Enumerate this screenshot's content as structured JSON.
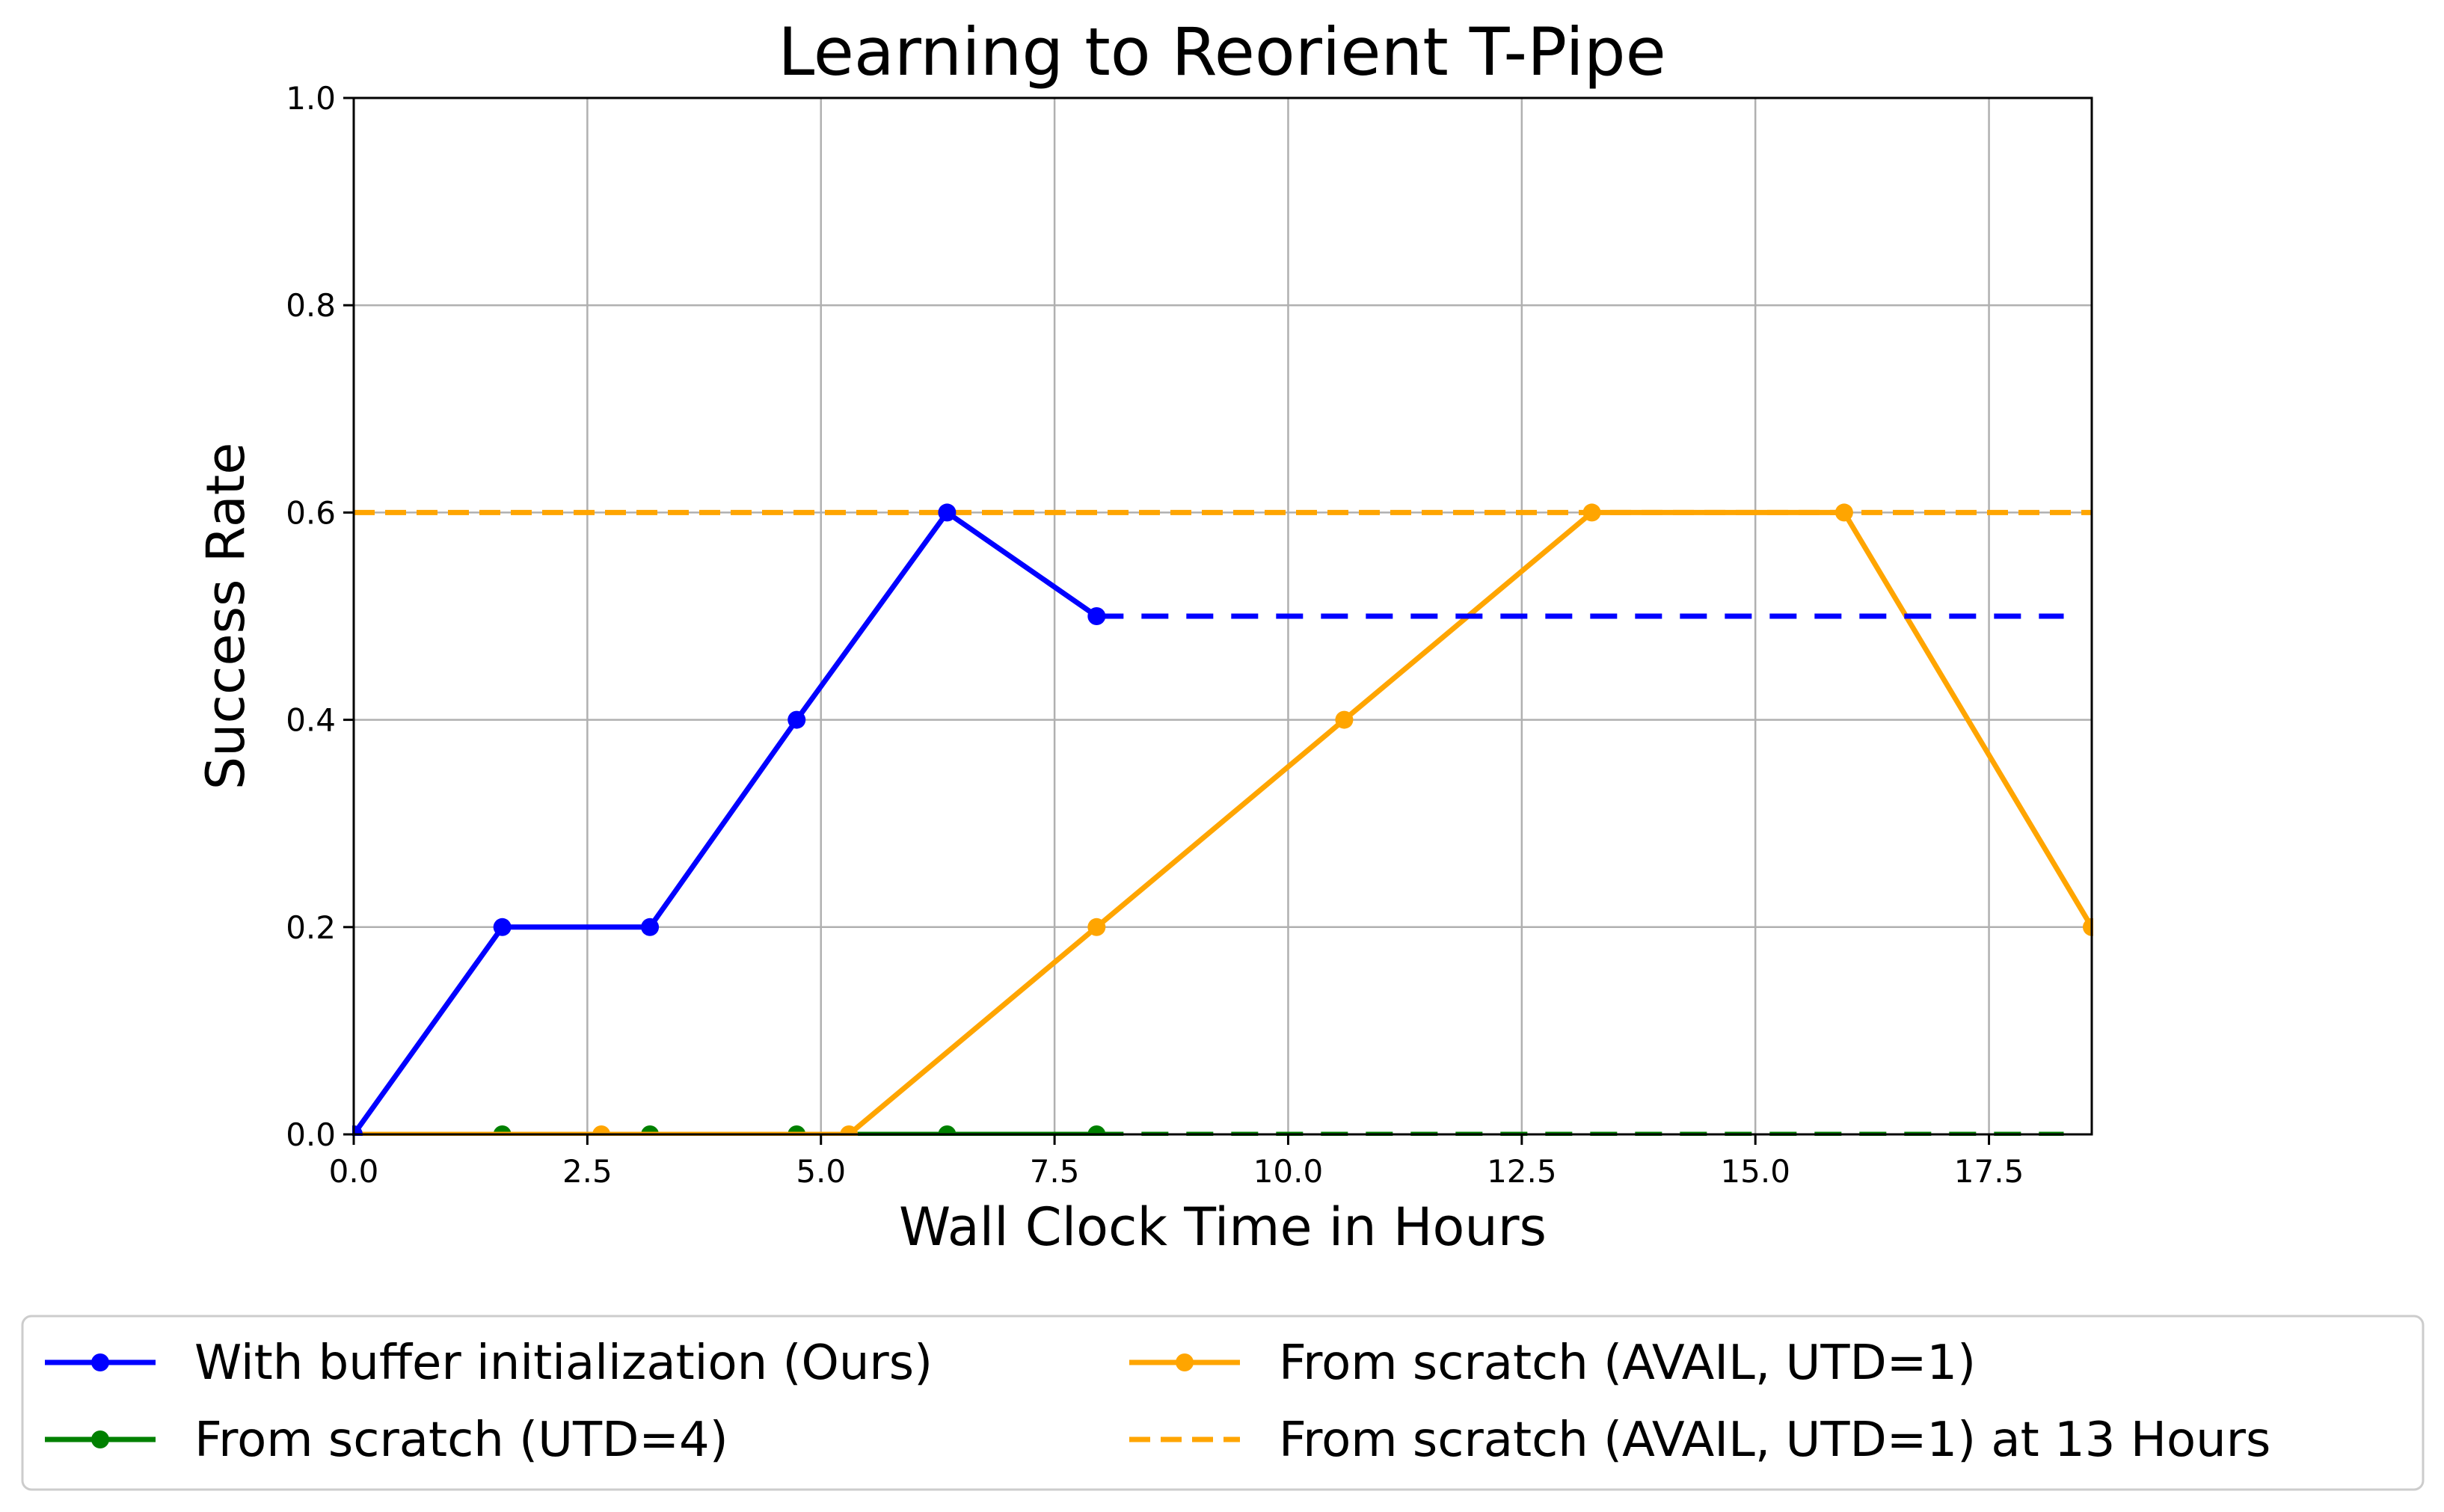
{
  "chart_data": {
    "type": "line",
    "title": "Learning to Reorient T-Pipe",
    "xlabel": "Wall Clock Time in Hours",
    "ylabel": "Success Rate",
    "xlim": [
      0,
      18.6
    ],
    "ylim": [
      0,
      1.0
    ],
    "x_ticks": [
      "0.0",
      "2.5",
      "5.0",
      "7.5",
      "10.0",
      "12.5",
      "15.0",
      "17.5"
    ],
    "y_ticks": [
      "0.0",
      "0.2",
      "0.4",
      "0.6",
      "0.8",
      "1.0"
    ],
    "grid": true,
    "legend_position": "below",
    "series": [
      {
        "name": "With buffer initialization (Ours)",
        "color": "#0000ff",
        "style": "solid",
        "marker": true,
        "x": [
          0.0,
          1.59,
          3.17,
          4.74,
          6.35,
          7.95
        ],
        "y": [
          0.0,
          0.2,
          0.2,
          0.4,
          0.6,
          0.5
        ],
        "extension": {
          "x": [
            7.95,
            18.3
          ],
          "y": [
            0.5,
            0.5
          ],
          "style": "dashed"
        }
      },
      {
        "name": "From scratch (UTD=4)",
        "color": "#008000",
        "style": "solid",
        "marker": true,
        "x": [
          0.0,
          1.59,
          3.17,
          4.74,
          6.35,
          7.95
        ],
        "y": [
          0.0,
          0.0,
          0.0,
          0.0,
          0.0,
          0.0
        ],
        "extension": {
          "x": [
            7.95,
            18.3
          ],
          "y": [
            0.0,
            0.0
          ],
          "style": "dashed"
        }
      },
      {
        "name": "From scratch (AVAIL, UTD=1)",
        "color": "#ffa500",
        "style": "solid",
        "marker": true,
        "x": [
          0.0,
          2.65,
          5.3,
          7.95,
          10.6,
          13.25,
          15.95,
          18.6
        ],
        "y": [
          0.0,
          0.0,
          0.0,
          0.2,
          0.4,
          0.6,
          0.6,
          0.2
        ]
      },
      {
        "name": "From scratch (AVAIL, UTD=1) at 13 Hours",
        "color": "#ffa500",
        "style": "dashed",
        "marker": false,
        "x": [
          0.0,
          18.6
        ],
        "y": [
          0.6,
          0.6
        ]
      }
    ]
  }
}
